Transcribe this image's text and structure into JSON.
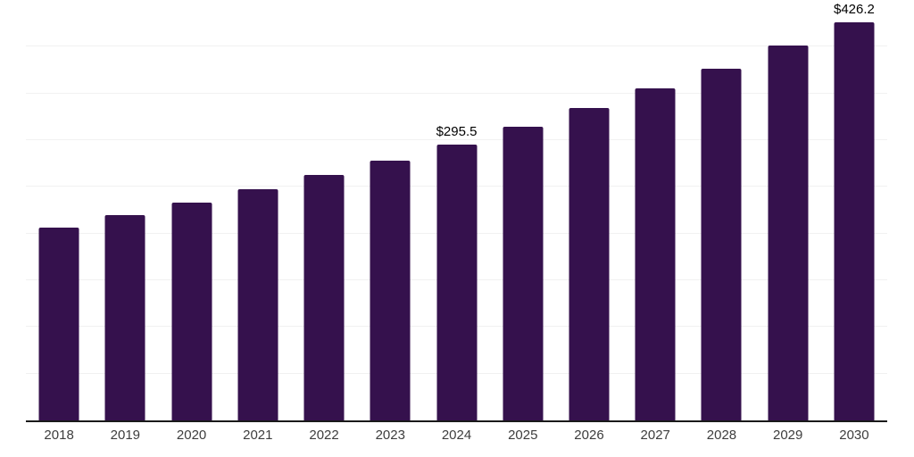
{
  "chart_data": {
    "type": "bar",
    "title": "",
    "xlabel": "",
    "ylabel": "",
    "categories": [
      "2018",
      "2019",
      "2020",
      "2021",
      "2022",
      "2023",
      "2024",
      "2025",
      "2026",
      "2027",
      "2028",
      "2029",
      "2030"
    ],
    "values": [
      206.1,
      219.5,
      233.0,
      247.2,
      262.5,
      277.9,
      295.5,
      314.1,
      334.0,
      355.5,
      376.5,
      400.9,
      426.2
    ],
    "data_labels": [
      {
        "category": "2024",
        "text": "$295.5"
      },
      {
        "category": "2030",
        "text": "$426.2"
      }
    ],
    "ylim": [
      0,
      450
    ],
    "gridline_step": 50,
    "grid": "horizontal-only",
    "y_axis_labels_visible": false,
    "legend": "none",
    "colors": {
      "bar": "#35114d",
      "axis": "#1a1a1a",
      "gridline": "#f1f1f1",
      "tick_label": "#3d3d3d",
      "data_label": "#000000",
      "background": "#ffffff"
    }
  }
}
